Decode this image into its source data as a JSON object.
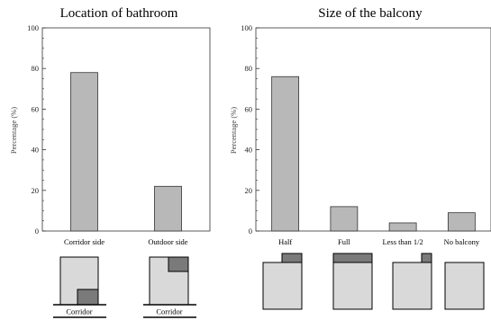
{
  "chart_data": [
    {
      "type": "bar",
      "title": "Location of bathroom",
      "ylabel": "Percentage (%)",
      "xlabel": "",
      "categories": [
        "Corridor side",
        "Outdoor side"
      ],
      "values": [
        78,
        22
      ],
      "ylim": [
        0,
        100
      ],
      "yticks": [
        0,
        20,
        40,
        60,
        80,
        100
      ],
      "grid": false,
      "bar_color": "#b8b8b8",
      "diagram_labels": [
        "Corridor",
        "Corridor"
      ]
    },
    {
      "type": "bar",
      "title": "Size of the balcony",
      "ylabel": "Percentage (%)",
      "xlabel": "",
      "categories": [
        "Half",
        "Full",
        "Less than 1/2",
        "No balcony"
      ],
      "values": [
        76,
        12,
        4,
        9
      ],
      "ylim": [
        0,
        100
      ],
      "yticks": [
        0,
        20,
        40,
        60,
        80,
        100
      ],
      "grid": false,
      "bar_color": "#b8b8b8"
    }
  ],
  "colors": {
    "room_fill": "#d9d9d9",
    "feature_fill": "#7a7a7a",
    "stroke": "#000000"
  }
}
